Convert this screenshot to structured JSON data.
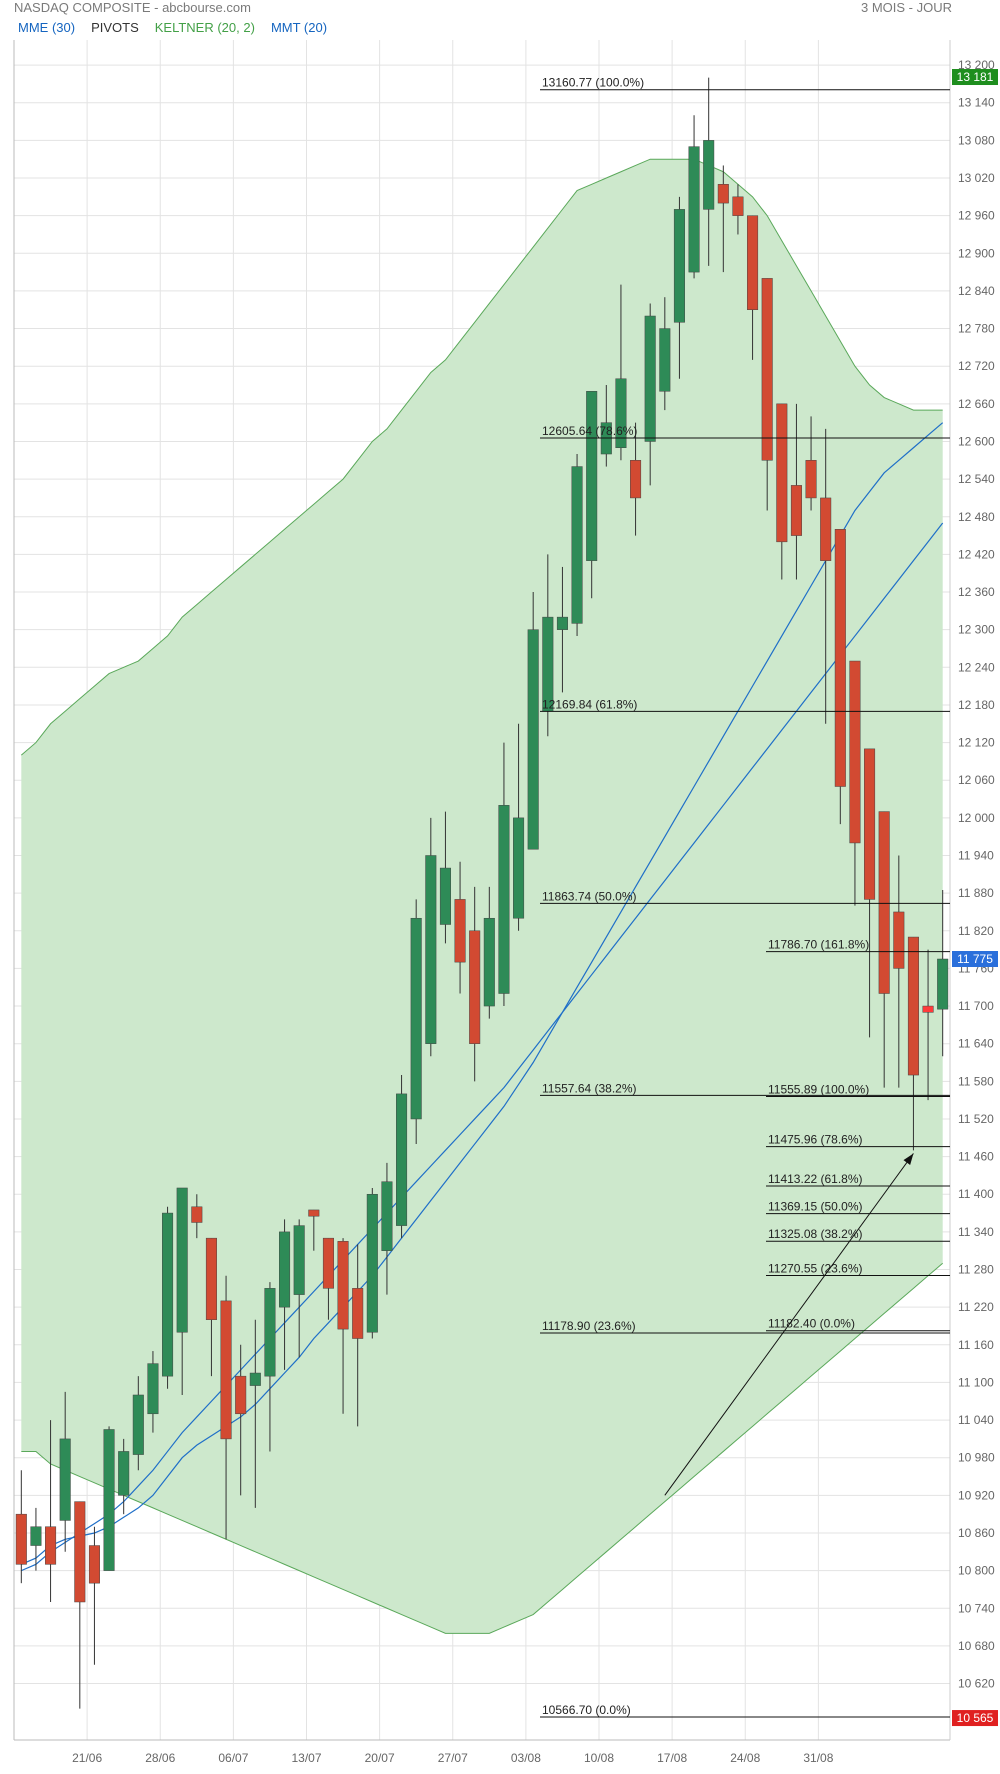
{
  "header": {
    "title": "NASDAQ COMPOSITE - abcbourse.com",
    "period": "3 MOIS - JOUR"
  },
  "legend": [
    {
      "label": "MME (30)",
      "color": "#1565c0"
    },
    {
      "label": "PIVOTS",
      "color": "#333333"
    },
    {
      "label": "KELTNER (20, 2)",
      "color": "#43a047"
    },
    {
      "label": "MMT (20)",
      "color": "#1565c0"
    }
  ],
  "colors": {
    "up": "#2e8b57",
    "down": "#d24a32",
    "down_last": "#ff3b3b",
    "keltner_fill": "#cde8cc",
    "keltner_line": "#5aa85a",
    "ma": "#1f6fc8",
    "grid": "#e3e3e3"
  },
  "chart_data": {
    "type": "candlestick",
    "ylim": [
      10530,
      13240
    ],
    "yticks": [
      13200,
      13140,
      13080,
      13020,
      12960,
      12900,
      12840,
      12780,
      12720,
      12660,
      12600,
      12540,
      12480,
      12420,
      12360,
      12300,
      12240,
      12180,
      12120,
      12060,
      12000,
      11940,
      11880,
      11820,
      11760,
      11700,
      11640,
      11580,
      11520,
      11460,
      11400,
      11340,
      11280,
      11220,
      11160,
      11100,
      11040,
      10980,
      10920,
      10860,
      10800,
      10740,
      10680,
      10620
    ],
    "ytick_labels": [
      "13 200",
      "13 140",
      "13 080",
      "13 020",
      "12 960",
      "12 900",
      "12 840",
      "12 780",
      "12 720",
      "12 660",
      "12 600",
      "12 540",
      "12 480",
      "12 420",
      "12 360",
      "12 300",
      "12 240",
      "12 180",
      "12 120",
      "12 060",
      "12 000",
      "11 940",
      "11 880",
      "11 820",
      "11 760",
      "11 700",
      "11 640",
      "11 580",
      "11 520",
      "11 460",
      "11 400",
      "11 340",
      "11 280",
      "11 220",
      "11 160",
      "11 100",
      "11 040",
      "10 980",
      "10 920",
      "10 860",
      "10 800",
      "10 740",
      "10 680",
      "10 620"
    ],
    "xticks": [
      {
        "label": "21/06",
        "index": 5
      },
      {
        "label": "28/06",
        "index": 10
      },
      {
        "label": "06/07",
        "index": 15
      },
      {
        "label": "13/07",
        "index": 20
      },
      {
        "label": "20/07",
        "index": 25
      },
      {
        "label": "27/07",
        "index": 30
      },
      {
        "label": "03/08",
        "index": 35
      },
      {
        "label": "10/08",
        "index": 40
      },
      {
        "label": "17/08",
        "index": 45
      },
      {
        "label": "24/08",
        "index": 50
      },
      {
        "label": "31/08",
        "index": 55
      }
    ],
    "price_markers": [
      {
        "label": "13 181",
        "value": 13181,
        "color": "#1e8e1e"
      },
      {
        "label": "11 775",
        "value": 11775,
        "color": "#2a6fdb"
      },
      {
        "label": "10 565",
        "value": 10565,
        "color": "#e02020"
      }
    ],
    "candles": [
      {
        "o": 10890,
        "h": 10960,
        "l": 10780,
        "c": 10810
      },
      {
        "o": 10840,
        "h": 10900,
        "l": 10800,
        "c": 10870
      },
      {
        "o": 10870,
        "h": 11040,
        "l": 10750,
        "c": 10810
      },
      {
        "o": 10880,
        "h": 11085,
        "l": 10830,
        "c": 11010
      },
      {
        "o": 10910,
        "h": 10910,
        "l": 10580,
        "c": 10750
      },
      {
        "o": 10840,
        "h": 10870,
        "l": 10650,
        "c": 10780
      },
      {
        "o": 10800,
        "h": 11030,
        "l": 10800,
        "c": 11025
      },
      {
        "o": 10920,
        "h": 11010,
        "l": 10890,
        "c": 10990
      },
      {
        "o": 10985,
        "h": 11110,
        "l": 10960,
        "c": 11080
      },
      {
        "o": 11050,
        "h": 11150,
        "l": 11020,
        "c": 11130
      },
      {
        "o": 11110,
        "h": 11380,
        "l": 11090,
        "c": 11370
      },
      {
        "o": 11180,
        "h": 11410,
        "l": 11080,
        "c": 11410
      },
      {
        "o": 11380,
        "h": 11400,
        "l": 11330,
        "c": 11355
      },
      {
        "o": 11330,
        "h": 11330,
        "l": 11110,
        "c": 11200
      },
      {
        "o": 11230,
        "h": 11270,
        "l": 10850,
        "c": 11010
      },
      {
        "o": 11110,
        "h": 11160,
        "l": 10920,
        "c": 11050
      },
      {
        "o": 11095,
        "h": 11200,
        "l": 10900,
        "c": 11115
      },
      {
        "o": 11110,
        "h": 11260,
        "l": 10990,
        "c": 11250
      },
      {
        "o": 11220,
        "h": 11360,
        "l": 11120,
        "c": 11340
      },
      {
        "o": 11240,
        "h": 11360,
        "l": 11140,
        "c": 11350
      },
      {
        "o": 11375,
        "h": 11375,
        "l": 11310,
        "c": 11365
      },
      {
        "o": 11330,
        "h": 11330,
        "l": 11200,
        "c": 11250
      },
      {
        "o": 11325,
        "h": 11330,
        "l": 11050,
        "c": 11185
      },
      {
        "o": 11250,
        "h": 11320,
        "l": 11030,
        "c": 11170
      },
      {
        "o": 11180,
        "h": 11410,
        "l": 11170,
        "c": 11400
      },
      {
        "o": 11310,
        "h": 11450,
        "l": 11240,
        "c": 11420
      },
      {
        "o": 11350,
        "h": 11590,
        "l": 11330,
        "c": 11560
      },
      {
        "o": 11520,
        "h": 11870,
        "l": 11480,
        "c": 11840
      },
      {
        "o": 11640,
        "h": 12000,
        "l": 11620,
        "c": 11940
      },
      {
        "o": 11830,
        "h": 12010,
        "l": 11800,
        "c": 11920
      },
      {
        "o": 11870,
        "h": 11930,
        "l": 11720,
        "c": 11770
      },
      {
        "o": 11820,
        "h": 11890,
        "l": 11580,
        "c": 11640
      },
      {
        "o": 11700,
        "h": 11890,
        "l": 11680,
        "c": 11840
      },
      {
        "o": 11720,
        "h": 12120,
        "l": 11700,
        "c": 12020
      },
      {
        "o": 11840,
        "h": 12150,
        "l": 11820,
        "c": 12000
      },
      {
        "o": 11950,
        "h": 12360,
        "l": 11950,
        "c": 12300
      },
      {
        "o": 12170,
        "h": 12420,
        "l": 12130,
        "c": 12320
      },
      {
        "o": 12300,
        "h": 12400,
        "l": 12200,
        "c": 12320
      },
      {
        "o": 12310,
        "h": 12580,
        "l": 12290,
        "c": 12560
      },
      {
        "o": 12410,
        "h": 12660,
        "l": 12350,
        "c": 12680
      },
      {
        "o": 12580,
        "h": 12690,
        "l": 12560,
        "c": 12630
      },
      {
        "o": 12590,
        "h": 12850,
        "l": 12570,
        "c": 12700
      },
      {
        "o": 12570,
        "h": 12630,
        "l": 12450,
        "c": 12510
      },
      {
        "o": 12600,
        "h": 12820,
        "l": 12530,
        "c": 12800
      },
      {
        "o": 12680,
        "h": 12830,
        "l": 12650,
        "c": 12780
      },
      {
        "o": 12790,
        "h": 12990,
        "l": 12700,
        "c": 12970
      },
      {
        "o": 12870,
        "h": 13120,
        "l": 12860,
        "c": 13070
      },
      {
        "o": 12970,
        "h": 13180,
        "l": 12880,
        "c": 13080
      },
      {
        "o": 13010,
        "h": 13040,
        "l": 12870,
        "c": 12980
      },
      {
        "o": 12990,
        "h": 13010,
        "l": 12930,
        "c": 12960
      },
      {
        "o": 12960,
        "h": 12960,
        "l": 12730,
        "c": 12810
      },
      {
        "o": 12860,
        "h": 12860,
        "l": 12490,
        "c": 12570
      },
      {
        "o": 12660,
        "h": 12660,
        "l": 12380,
        "c": 12440
      },
      {
        "o": 12530,
        "h": 12660,
        "l": 12380,
        "c": 12450
      },
      {
        "o": 12570,
        "h": 12640,
        "l": 12490,
        "c": 12510
      },
      {
        "o": 12510,
        "h": 12620,
        "l": 12150,
        "c": 12410
      },
      {
        "o": 12460,
        "h": 12460,
        "l": 11990,
        "c": 12050
      },
      {
        "o": 12250,
        "h": 12250,
        "l": 11860,
        "c": 11960
      },
      {
        "o": 12110,
        "h": 12110,
        "l": 11650,
        "c": 11870
      },
      {
        "o": 12010,
        "h": 12010,
        "l": 11570,
        "c": 11720
      },
      {
        "o": 11850,
        "h": 11940,
        "l": 11570,
        "c": 11760
      },
      {
        "o": 11810,
        "h": 11810,
        "l": 11470,
        "c": 11590
      },
      {
        "o": 11700,
        "h": 11790,
        "l": 11550,
        "c": 11690
      },
      {
        "o": 11695,
        "h": 11885,
        "l": 11620,
        "c": 11775
      }
    ],
    "keltner_upper": [
      12100,
      12120,
      12150,
      12170,
      12190,
      12210,
      12230,
      12240,
      12250,
      12270,
      12290,
      12320,
      12340,
      12360,
      12380,
      12400,
      12420,
      12440,
      12460,
      12480,
      12500,
      12520,
      12540,
      12570,
      12600,
      12620,
      12650,
      12680,
      12710,
      12730,
      12760,
      12790,
      12820,
      12850,
      12880,
      12910,
      12940,
      12970,
      13000,
      13010,
      13020,
      13030,
      13040,
      13050,
      13050,
      13050,
      13050,
      13040,
      13030,
      13010,
      12990,
      12960,
      12920,
      12880,
      12840,
      12800,
      12760,
      12720,
      12690,
      12670,
      12660,
      12650,
      12650,
      12650
    ],
    "keltner_lower": [
      10990,
      10990,
      10970,
      10960,
      10950,
      10940,
      10930,
      10920,
      10910,
      10900,
      10890,
      10880,
      10870,
      10860,
      10850,
      10840,
      10830,
      10820,
      10810,
      10800,
      10790,
      10780,
      10770,
      10760,
      10750,
      10740,
      10730,
      10720,
      10710,
      10700,
      10700,
      10700,
      10700,
      10710,
      10720,
      10730,
      10750,
      10770,
      10790,
      10810,
      10830,
      10850,
      10870,
      10890,
      10910,
      10930,
      10950,
      10970,
      10990,
      11010,
      11030,
      11050,
      11070,
      11090,
      11110,
      11130,
      11150,
      11170,
      11190,
      11210,
      11230,
      11250,
      11270,
      11290
    ],
    "mme30": [
      10810,
      10820,
      10840,
      10850,
      10855,
      10860,
      10870,
      10885,
      10900,
      10920,
      10950,
      10980,
      11000,
      11015,
      11030,
      11045,
      11065,
      11090,
      11115,
      11140,
      11170,
      11195,
      11220,
      11245,
      11270,
      11300,
      11330,
      11360,
      11390,
      11420,
      11450,
      11480,
      11510,
      11540,
      11575,
      11610,
      11650,
      11690,
      11730,
      11770,
      11810,
      11850,
      11890,
      11930,
      11970,
      12010,
      12050,
      12090,
      12130,
      12170,
      12210,
      12250,
      12290,
      12330,
      12370,
      12410,
      12450,
      12490,
      12520,
      12550,
      12570,
      12590,
      12610,
      12630
    ],
    "mmt20": [
      10800,
      10810,
      10830,
      10845,
      10860,
      10875,
      10890,
      10910,
      10935,
      10960,
      10990,
      11020,
      11045,
      11070,
      11095,
      11120,
      11145,
      11170,
      11195,
      11220,
      11245,
      11270,
      11295,
      11320,
      11345,
      11370,
      11395,
      11420,
      11445,
      11470,
      11495,
      11520,
      11545,
      11570,
      11600,
      11630,
      11660,
      11690,
      11720,
      11750,
      11780,
      11810,
      11840,
      11870,
      11900,
      11930,
      11960,
      11990,
      12020,
      12050,
      12080,
      12110,
      12140,
      12170,
      12200,
      12230,
      12260,
      12290,
      12320,
      12350,
      12380,
      12410,
      12440,
      12470
    ],
    "fibo_left": [
      {
        "value": 13160.77,
        "label": "13160.77 (100.0%)"
      },
      {
        "value": 12605.64,
        "label": "12605.64 (78.6%)"
      },
      {
        "value": 12169.84,
        "label": "12169.84 (61.8%)"
      },
      {
        "value": 11863.74,
        "label": "11863.74 (50.0%)"
      },
      {
        "value": 11557.64,
        "label": "11557.64 (38.2%)"
      },
      {
        "value": 11178.9,
        "label": "11178.90 (23.6%)"
      },
      {
        "value": 10566.7,
        "label": "10566.70 (0.0%)"
      }
    ],
    "fibo_right": [
      {
        "value": 11786.7,
        "label": "11786.70 (161.8%)"
      },
      {
        "value": 11555.89,
        "label": "11555.89 (100.0%)"
      },
      {
        "value": 11475.96,
        "label": "11475.96 (78.6%)"
      },
      {
        "value": 11413.22,
        "label": "11413.22 (61.8%)"
      },
      {
        "value": 11369.15,
        "label": "11369.15 (50.0%)"
      },
      {
        "value": 11325.08,
        "label": "11325.08 (38.2%)"
      },
      {
        "value": 11270.55,
        "label": "11270.55 (23.6%)"
      },
      {
        "value": 11182.4,
        "label": "11182.40 (0.0%)"
      }
    ],
    "arrow": {
      "from": [
        44,
        10920
      ],
      "to": [
        61,
        11465
      ]
    }
  }
}
